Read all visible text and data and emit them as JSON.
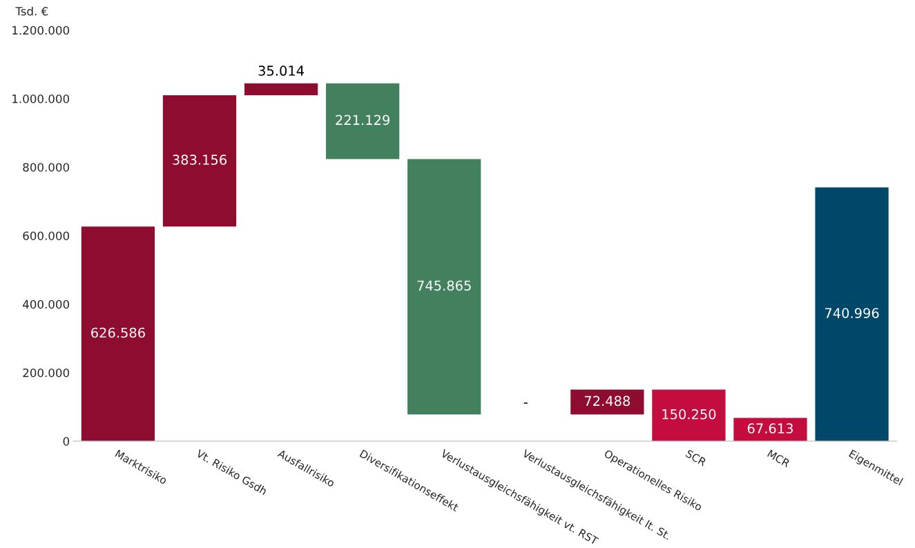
{
  "chart_data": {
    "type": "bar",
    "ylabel": "Tsd. €",
    "categories": [
      "Marktrisiko",
      "Vt. Risiko Gsdh",
      "Ausfallrisiko",
      "Diversifikationseffekt",
      "Verlustausgleichsfähigkeit vt. RST",
      "Verlustausgleichsfähigkeit lt. St.",
      "Operationelles Risiko",
      "SCR",
      "MCR",
      "Eigenmittel"
    ],
    "values": [
      626586,
      383156,
      35014,
      -221129,
      -745865,
      0,
      72488,
      150250,
      67613,
      740996
    ],
    "base": [
      0,
      626586,
      1009742,
      1044756,
      823627,
      null,
      77762,
      0,
      0,
      0
    ],
    "colors": [
      "#8e0c2f",
      "#8e0c2f",
      "#8e0c2f",
      "#43805d",
      "#43805d",
      "#43805d",
      "#8e0c2f",
      "#c40c3f",
      "#c40c3f",
      "#00486a"
    ],
    "value_labels": [
      "626.586",
      "383.156",
      "35.014",
      "221.129",
      "745.865",
      "-",
      "72.488",
      "150.250",
      "67.613",
      "740.996"
    ],
    "ylim": [
      0,
      1200000
    ],
    "yticks": [
      0,
      {
        "value": 200000,
        "label": "200.000"
      },
      {
        "value": 400000,
        "label": "400.000"
      },
      {
        "value": 600000,
        "label": "600.000"
      },
      {
        "value": 800000,
        "label": "800.000"
      },
      {
        "value": 1000000,
        "label": "1.000.000"
      },
      {
        "value": 1200000,
        "label": "1.200.000"
      }
    ],
    "grid": false,
    "legend": false
  }
}
